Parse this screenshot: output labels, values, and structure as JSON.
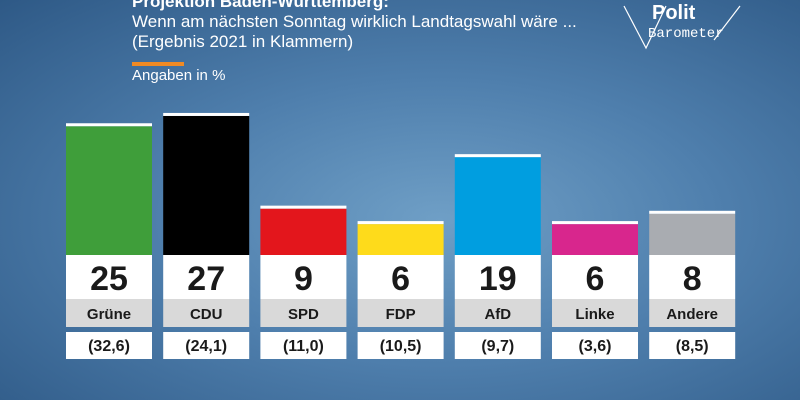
{
  "header": {
    "title": "Projektion Baden-Württemberg:",
    "subtitle_line1": "Wenn am nächsten Sonntag wirklich Landtagswahl wäre ...",
    "subtitle_line2": "(Ergebnis 2021 in Klammern)",
    "unit_label": "Angaben in %"
  },
  "logo": {
    "line1": "Polit",
    "line2": "Barometer"
  },
  "colors": {
    "accent": "#f08a24",
    "bar_cap": "#ffffff"
  },
  "chart_data": {
    "type": "bar",
    "categories": [
      "Grüne",
      "CDU",
      "SPD",
      "FDP",
      "AfD",
      "Linke",
      "Andere"
    ],
    "values": [
      25,
      27,
      9,
      6,
      19,
      6,
      8
    ],
    "previous": [
      32.6,
      24.1,
      11.0,
      10.5,
      9.7,
      3.6,
      8.5
    ],
    "value_labels": [
      "25",
      "27",
      "9",
      "6",
      "19",
      "6",
      "8"
    ],
    "previous_labels": [
      "(32,6)",
      "(24,1)",
      "(11,0)",
      "(10,5)",
      "(9,7)",
      "(3,6)",
      "(8,5)"
    ],
    "colors": [
      "#3f9e3a",
      "#000000",
      "#e3161c",
      "#fedb1b",
      "#009ee0",
      "#d8268d",
      "#a9acb1"
    ],
    "ylim": [
      0,
      30
    ]
  }
}
